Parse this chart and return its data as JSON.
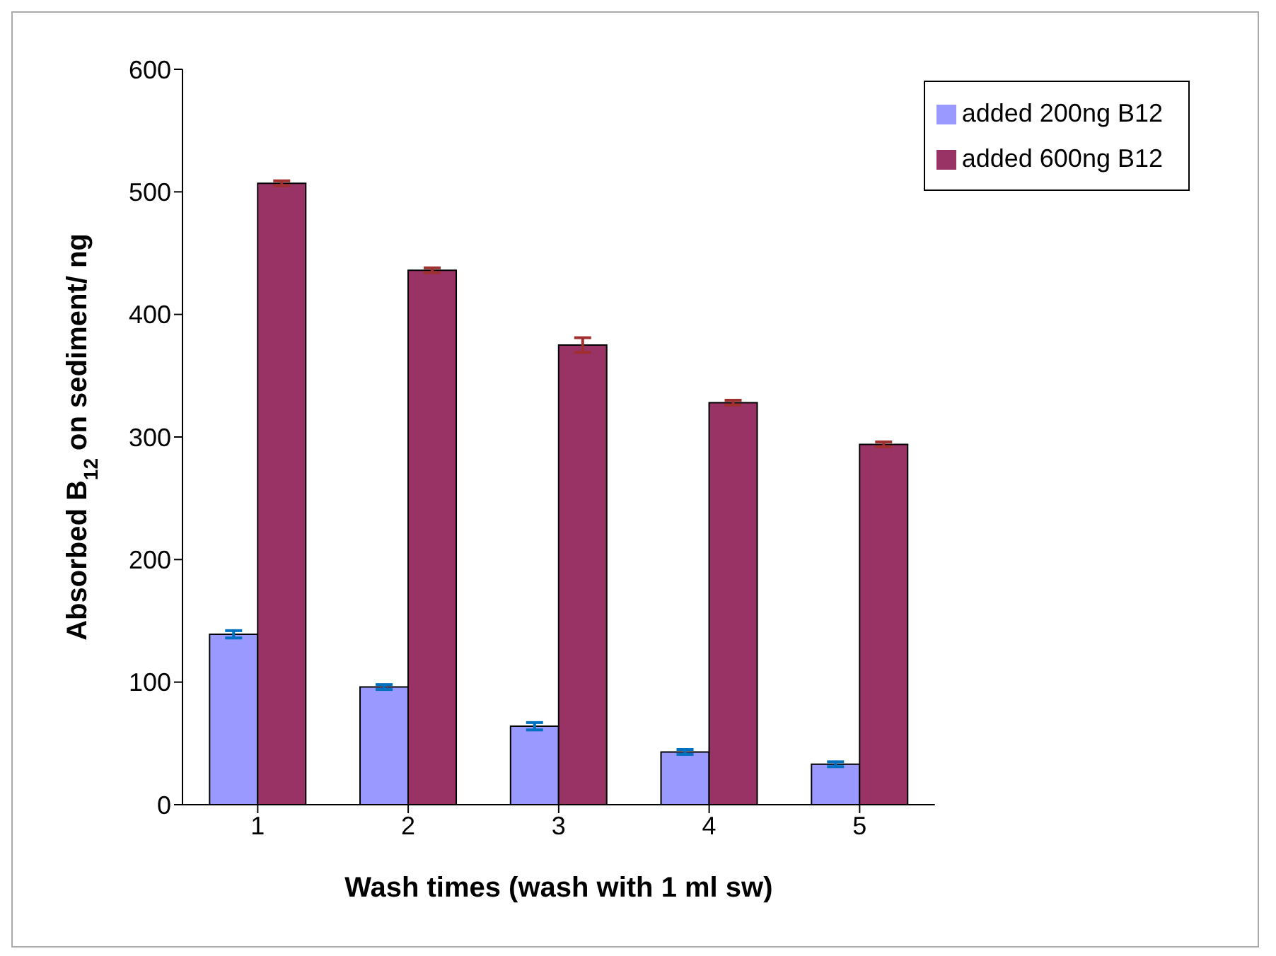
{
  "chart_data": {
    "type": "bar",
    "xlabel": "Wash times (wash with 1 ml sw)",
    "ylabel": "Absorbed B$_{12}$ on sediment/ ng",
    "categories": [
      "1",
      "2",
      "3",
      "4",
      "5"
    ],
    "series": [
      {
        "name": "added 200ng B12",
        "color": "#9999ff",
        "values": [
          139,
          96,
          64,
          43,
          33
        ],
        "errors": [
          3,
          2,
          3,
          2,
          2
        ]
      },
      {
        "name": "added 600ng B12",
        "color": "#993366",
        "values": [
          507,
          436,
          375,
          328,
          294
        ],
        "errors": [
          2,
          2,
          6,
          2,
          2
        ]
      }
    ],
    "ylim": [
      0,
      600
    ],
    "yticks": [
      0,
      100,
      200,
      300,
      400,
      500,
      600
    ],
    "grid": false,
    "legend": "top right"
  }
}
